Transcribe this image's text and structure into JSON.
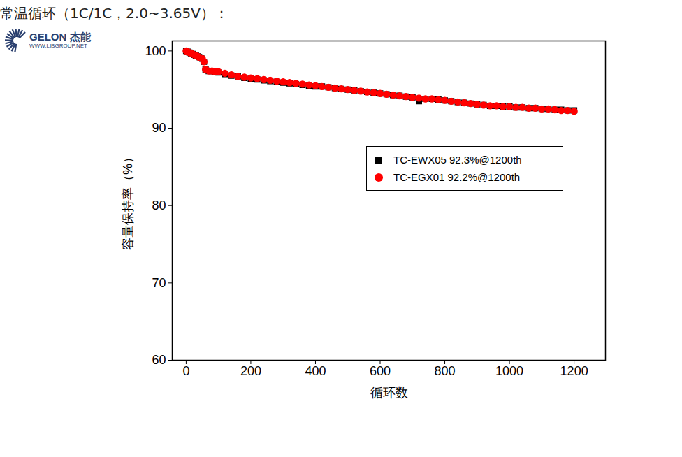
{
  "chart_data": {
    "type": "scatter",
    "title": "常温循环（1C/1C，2.0~3.65V）：",
    "annotations": [
      "GELON 杰能",
      "WWW.LIBGROUP.NET"
    ],
    "x_label": "循环数",
    "y_label": "容量保持率（%）",
    "xlim": [
      -43,
      1297
    ],
    "xticks": [
      0,
      200,
      400,
      600,
      800,
      1000,
      1200
    ],
    "ylim": [
      60,
      101.3
    ],
    "yticks": [
      60,
      70,
      80,
      90,
      100
    ],
    "grid": false,
    "legend": "right",
    "x": [
      0,
      5,
      10,
      15,
      20,
      25,
      30,
      35,
      40,
      45,
      50,
      55,
      60,
      70,
      80,
      90,
      100,
      120,
      140,
      160,
      180,
      200,
      220,
      240,
      260,
      280,
      300,
      320,
      340,
      360,
      380,
      400,
      420,
      440,
      460,
      480,
      500,
      520,
      540,
      560,
      580,
      600,
      620,
      640,
      660,
      680,
      700,
      720,
      740,
      760,
      780,
      800,
      820,
      840,
      860,
      880,
      900,
      920,
      940,
      960,
      980,
      1000,
      1020,
      1040,
      1060,
      1080,
      1100,
      1120,
      1140,
      1160,
      1180,
      1200
    ],
    "series": [
      {
        "name": "TC-EWX05  92.3%@1200th",
        "color": "#000000",
        "marker": "square",
        "values": [
          100,
          99.9,
          99.8,
          99.7,
          99.6,
          99.5,
          99.4,
          99.3,
          99.2,
          99.1,
          99.0,
          98.6,
          97.6,
          97.4,
          97.4,
          97.3,
          97.2,
          97.0,
          96.8,
          96.7,
          96.5,
          96.4,
          96.3,
          96.2,
          96.1,
          96.0,
          95.9,
          95.8,
          95.7,
          95.6,
          95.5,
          95.4,
          95.4,
          95.3,
          95.2,
          95.1,
          95.0,
          94.9,
          94.8,
          94.7,
          94.6,
          94.5,
          94.4,
          94.3,
          94.2,
          94.1,
          94.0,
          93.5,
          93.8,
          93.8,
          93.7,
          93.6,
          93.5,
          93.4,
          93.3,
          93.2,
          93.1,
          93.0,
          92.9,
          92.9,
          92.8,
          92.8,
          92.7,
          92.7,
          92.6,
          92.6,
          92.5,
          92.5,
          92.4,
          92.4,
          92.3,
          92.3
        ]
      },
      {
        "name": "TC-EGX01   92.2%@1200th",
        "color": "#ff0000",
        "marker": "circle",
        "values": [
          100,
          99.9,
          99.8,
          99.7,
          99.6,
          99.5,
          99.4,
          99.3,
          99.2,
          99.1,
          99.0,
          98.6,
          97.6,
          97.4,
          97.4,
          97.3,
          97.3,
          97.1,
          96.9,
          96.7,
          96.6,
          96.5,
          96.4,
          96.3,
          96.2,
          96.1,
          96.0,
          95.9,
          95.8,
          95.7,
          95.6,
          95.5,
          95.4,
          95.3,
          95.2,
          95.1,
          95.0,
          94.9,
          94.8,
          94.7,
          94.6,
          94.5,
          94.4,
          94.3,
          94.2,
          94.1,
          94.0,
          93.9,
          93.8,
          93.8,
          93.7,
          93.6,
          93.5,
          93.4,
          93.3,
          93.2,
          93.1,
          93.0,
          92.9,
          92.9,
          92.8,
          92.8,
          92.7,
          92.7,
          92.6,
          92.6,
          92.5,
          92.5,
          92.4,
          92.3,
          92.3,
          92.2
        ]
      }
    ]
  }
}
